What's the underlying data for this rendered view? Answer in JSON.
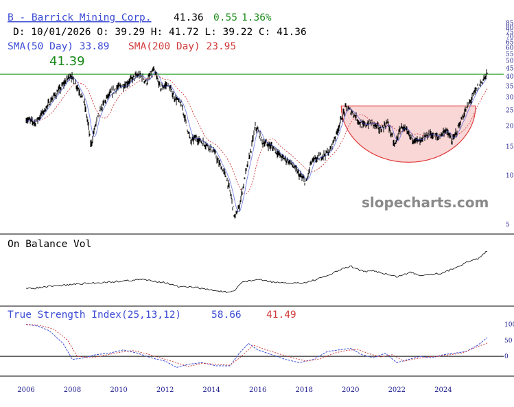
{
  "colors": {
    "background": "#ffffff",
    "price_bars": "#000000",
    "sma50": "#3b4bd4",
    "sma200": "#d13a3a",
    "resistance": "#32a832",
    "cup_fill": "#f9d7d7",
    "cup_stroke": "#e03a3a",
    "tsi_line": "#3b4bd4",
    "tsi_signal": "#d13a3a",
    "up": "#1a8a1a",
    "axis_text": "#1a1a8c"
  },
  "header": {
    "symbol_link": "B - Barrick Mining Corp.",
    "last": "41.36",
    "change": "0.55",
    "change_pct": "1.36%",
    "ohlc_line": "D: 10/01/2026 O: 39.29 H: 41.72 L: 39.22 C: 41.36",
    "sma50_label": "SMA(50 Day) 33.89",
    "sma200_label": "SMA(200 Day) 23.95"
  },
  "watermark": "slopecharts.com",
  "chart_data": [
    {
      "type": "line",
      "panel": "price",
      "y_scale": "log",
      "ylim": [
        4.5,
        88
      ],
      "y_ticks": [
        "5",
        "10",
        "15",
        "20",
        "25",
        "30",
        "35",
        "40",
        "45",
        "50",
        "55",
        "60",
        "65",
        "70",
        "75",
        "80",
        "85"
      ],
      "y_tick_values": [
        5,
        10,
        15,
        20,
        25,
        30,
        35,
        40,
        45,
        50,
        55,
        60,
        65,
        70,
        75,
        80,
        85
      ],
      "x_ticks": [
        "2006",
        "2008",
        "2010",
        "2012",
        "2014",
        "2016",
        "2018",
        "2020",
        "2022",
        "2024"
      ],
      "x_tick_values": [
        2006,
        2008,
        2010,
        2012,
        2014,
        2016,
        2018,
        2020,
        2022,
        2024
      ],
      "xlim": [
        2006,
        2025.9
      ],
      "price_path": [
        [
          2006.0,
          22
        ],
        [
          2006.4,
          21
        ],
        [
          2006.8,
          25
        ],
        [
          2007.1,
          29
        ],
        [
          2007.5,
          34
        ],
        [
          2007.9,
          41
        ],
        [
          2008.2,
          35
        ],
        [
          2008.5,
          28
        ],
        [
          2008.8,
          15
        ],
        [
          2009.1,
          23
        ],
        [
          2009.5,
          30
        ],
        [
          2009.9,
          34
        ],
        [
          2010.3,
          36
        ],
        [
          2010.7,
          40
        ],
        [
          2010.9,
          41
        ],
        [
          2011.2,
          37
        ],
        [
          2011.5,
          44
        ],
        [
          2011.8,
          34
        ],
        [
          2012.1,
          36
        ],
        [
          2012.4,
          30
        ],
        [
          2012.7,
          27
        ],
        [
          2012.9,
          21
        ],
        [
          2013.1,
          16
        ],
        [
          2013.3,
          17
        ],
        [
          2013.6,
          16
        ],
        [
          2013.9,
          15
        ],
        [
          2014.1,
          14
        ],
        [
          2014.3,
          12
        ],
        [
          2014.6,
          10
        ],
        [
          2014.8,
          8
        ],
        [
          2015.0,
          5.5
        ],
        [
          2015.2,
          6.4
        ],
        [
          2015.4,
          9
        ],
        [
          2015.7,
          14
        ],
        [
          2015.9,
          20
        ],
        [
          2016.2,
          16
        ],
        [
          2016.6,
          15
        ],
        [
          2017.0,
          13
        ],
        [
          2017.4,
          12
        ],
        [
          2017.8,
          10
        ],
        [
          2018.1,
          9
        ],
        [
          2018.3,
          12
        ],
        [
          2018.7,
          13
        ],
        [
          2019.1,
          14
        ],
        [
          2019.4,
          18
        ],
        [
          2019.6,
          22
        ],
        [
          2019.8,
          26
        ],
        [
          2020.1,
          24
        ],
        [
          2020.5,
          20
        ],
        [
          2020.9,
          21
        ],
        [
          2021.3,
          19
        ],
        [
          2021.6,
          21
        ],
        [
          2021.9,
          15
        ],
        [
          2022.2,
          20
        ],
        [
          2022.6,
          17
        ],
        [
          2023.0,
          16
        ],
        [
          2023.4,
          18
        ],
        [
          2023.8,
          17
        ],
        [
          2024.1,
          19
        ],
        [
          2024.4,
          16
        ],
        [
          2024.8,
          22
        ],
        [
          2025.1,
          27
        ],
        [
          2025.4,
          33
        ],
        [
          2025.7,
          38
        ],
        [
          2025.9,
          41.36
        ]
      ],
      "series": [
        {
          "name": "SMA(50 Day)",
          "last": 33.89
        },
        {
          "name": "SMA(200 Day)",
          "last": 23.95
        }
      ],
      "annotations": {
        "resistance_label": "41.39",
        "resistance_value": 41.39,
        "cup_pattern": {
          "x_start": 2019.6,
          "x_end": 2025.4,
          "rim": 26.5,
          "bottom": 12
        }
      }
    },
    {
      "type": "line",
      "panel": "obv",
      "title": "On Balance Vol",
      "series": [
        {
          "x": [
            2006.0,
            2007.0,
            2008.0,
            2009.0,
            2010.0,
            2011.0,
            2012.0,
            2012.6,
            2013.2,
            2014.0,
            2014.8,
            2015.0,
            2015.3,
            2016.0,
            2017.0,
            2018.0,
            2018.6,
            2019.2,
            2019.6,
            2020.0,
            2020.6,
            2021.0,
            2021.6,
            2022.0,
            2022.6,
            2023.0,
            2023.6,
            2024.0,
            2024.5,
            2025.0,
            2025.5,
            2025.9
          ],
          "values": [
            0.0,
            0.06,
            0.12,
            0.16,
            0.2,
            0.25,
            0.17,
            0.05,
            0.05,
            -0.03,
            -0.1,
            -0.05,
            0.18,
            0.25,
            0.15,
            0.16,
            0.26,
            0.4,
            0.52,
            0.6,
            0.45,
            0.48,
            0.38,
            0.32,
            0.44,
            0.36,
            0.4,
            0.42,
            0.56,
            0.7,
            0.8,
            1.0
          ]
        }
      ]
    },
    {
      "type": "line",
      "panel": "tsi",
      "title": "True Strength Index(25,13,12)",
      "tsi_value": "58.66",
      "signal_value": "41.49",
      "ylim": [
        -45,
        110
      ],
      "y_ticks": [
        "100",
        "50",
        "0"
      ],
      "y_tick_values": [
        100,
        50,
        0
      ],
      "series": [
        {
          "name": "TSI",
          "x": [
            2006.0,
            2006.5,
            2007.0,
            2007.6,
            2008.0,
            2008.5,
            2009.0,
            2009.6,
            2010.2,
            2010.8,
            2011.4,
            2012.0,
            2012.5,
            2013.0,
            2013.6,
            2014.2,
            2014.8,
            2015.2,
            2015.6,
            2016.0,
            2016.6,
            2017.2,
            2017.8,
            2018.4,
            2019.0,
            2019.5,
            2020.0,
            2020.5,
            2021.0,
            2021.5,
            2022.0,
            2022.5,
            2023.0,
            2023.5,
            2024.0,
            2024.5,
            2025.0,
            2025.5,
            2025.9
          ],
          "values": [
            100,
            95,
            80,
            40,
            -10,
            -5,
            5,
            10,
            20,
            10,
            -5,
            -15,
            -35,
            -25,
            -20,
            -30,
            -30,
            10,
            40,
            20,
            5,
            -10,
            -20,
            -10,
            15,
            20,
            25,
            5,
            -5,
            10,
            -20,
            -10,
            0,
            -5,
            5,
            10,
            15,
            35,
            58.66
          ]
        },
        {
          "name": "Signal",
          "x": [
            2006.0,
            2006.6,
            2007.2,
            2007.8,
            2008.2,
            2008.8,
            2009.4,
            2010.0,
            2010.6,
            2011.2,
            2011.8,
            2012.4,
            2013.0,
            2013.6,
            2014.2,
            2014.8,
            2015.3,
            2015.8,
            2016.3,
            2016.9,
            2017.5,
            2018.1,
            2018.7,
            2019.3,
            2019.8,
            2020.3,
            2020.8,
            2021.3,
            2021.8,
            2022.3,
            2022.8,
            2023.3,
            2023.8,
            2024.3,
            2024.8,
            2025.3,
            2025.9
          ],
          "values": [
            100,
            97,
            85,
            50,
            0,
            -5,
            3,
            12,
            18,
            8,
            -5,
            -18,
            -32,
            -22,
            -25,
            -28,
            0,
            35,
            22,
            8,
            -5,
            -15,
            -8,
            10,
            18,
            22,
            8,
            -2,
            5,
            -15,
            -8,
            -2,
            0,
            5,
            10,
            25,
            41.49
          ]
        }
      ]
    }
  ]
}
